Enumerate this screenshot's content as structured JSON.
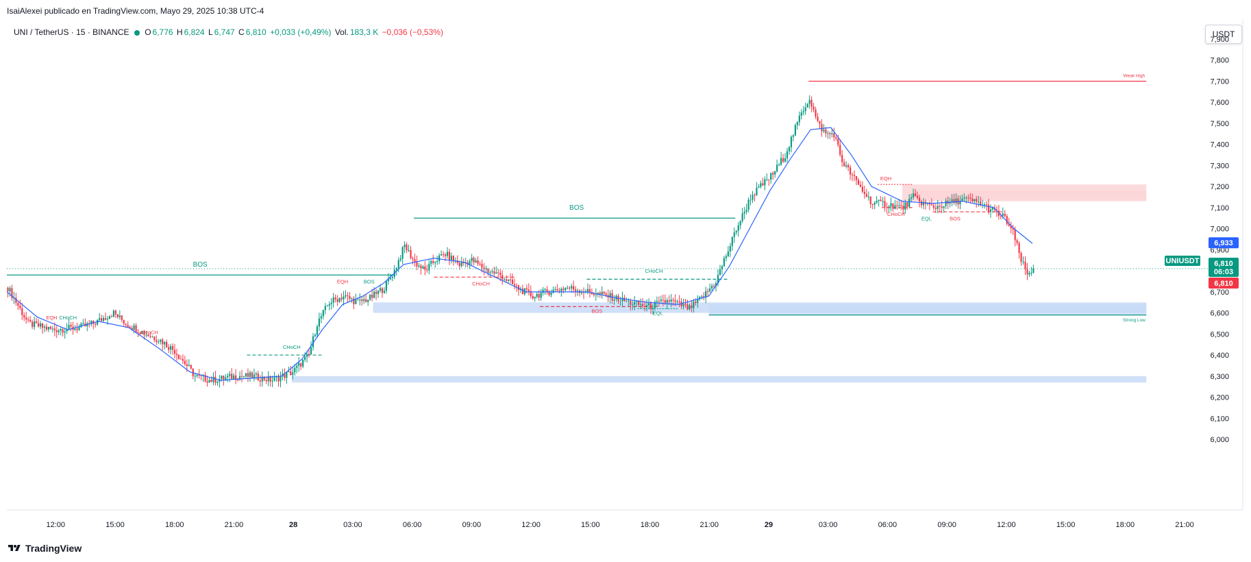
{
  "header": {
    "publisher": "IsaiAlexei publicado en TradingView.com, Mayo 29, 2025 10:38 UTC-4"
  },
  "legend": {
    "symbol": "UNI / TetherUS · 15 · BINANCE",
    "o_label": "O",
    "o": "6,776",
    "h_label": "H",
    "h": "6,824",
    "l_label": "L",
    "l": "6,747",
    "c_label": "C",
    "c": "6,810",
    "change": "+0,033 (+0,49%)",
    "vol_label": "Vol.",
    "vol": "183,3 K",
    "vol_change": "−0,036 (−0,53%)"
  },
  "currency_button": "USDT",
  "brand": "TradingView",
  "colors": {
    "up": "#089981",
    "down": "#f23645",
    "ema": "#2962ff",
    "demand_zone": "#c8daf7",
    "supply_zone": "#fbd5d8",
    "symbol_label": "#089981",
    "ema_label": "#2962ff"
  },
  "chart_data": {
    "type": "candlestick",
    "ylim": [
      6.0,
      7.9
    ],
    "y_ticks": [
      "7,900",
      "7,800",
      "7,700",
      "7,600",
      "7,500",
      "7,400",
      "7,300",
      "7,200",
      "7,100",
      "7,000",
      "6,900",
      "6,800",
      "6,700",
      "6,600",
      "6,500",
      "6,400",
      "6,300",
      "6,200",
      "6,100",
      "6,000"
    ],
    "x_ticks": [
      "12:00",
      "15:00",
      "18:00",
      "21:00",
      "28",
      "03:00",
      "06:00",
      "09:00",
      "12:00",
      "15:00",
      "18:00",
      "21:00",
      "29",
      "03:00",
      "06:00",
      "09:00",
      "12:00",
      "15:00",
      "18:00",
      "21:00"
    ],
    "price_labels": {
      "symbol_name": "UNIUSDT",
      "ema_value": "6,933",
      "last_price": "6,810",
      "countdown": "06:03",
      "last_price_axis": "6,810"
    },
    "close_path": [
      [
        0,
        6.72
      ],
      [
        10,
        6.55
      ],
      [
        22,
        6.52
      ],
      [
        35,
        6.53
      ],
      [
        42,
        6.55
      ],
      [
        48,
        6.58
      ],
      [
        52,
        6.6
      ],
      [
        58,
        6.55
      ],
      [
        68,
        6.5
      ],
      [
        75,
        6.47
      ],
      [
        82,
        6.42
      ],
      [
        88,
        6.35
      ],
      [
        92,
        6.3
      ],
      [
        100,
        6.28
      ],
      [
        112,
        6.3
      ],
      [
        120,
        6.3
      ],
      [
        130,
        6.28
      ],
      [
        140,
        6.32
      ],
      [
        148,
        6.4
      ],
      [
        152,
        6.55
      ],
      [
        158,
        6.65
      ],
      [
        165,
        6.68
      ],
      [
        172,
        6.65
      ],
      [
        178,
        6.67
      ],
      [
        185,
        6.72
      ],
      [
        190,
        6.8
      ],
      [
        195,
        6.92
      ],
      [
        200,
        6.84
      ],
      [
        205,
        6.8
      ],
      [
        210,
        6.85
      ],
      [
        215,
        6.88
      ],
      [
        222,
        6.83
      ],
      [
        228,
        6.85
      ],
      [
        236,
        6.8
      ],
      [
        242,
        6.78
      ],
      [
        250,
        6.72
      ],
      [
        258,
        6.68
      ],
      [
        265,
        6.7
      ],
      [
        275,
        6.72
      ],
      [
        285,
        6.7
      ],
      [
        295,
        6.68
      ],
      [
        305,
        6.65
      ],
      [
        315,
        6.63
      ],
      [
        325,
        6.66
      ],
      [
        335,
        6.62
      ],
      [
        342,
        6.68
      ],
      [
        348,
        6.75
      ],
      [
        352,
        6.85
      ],
      [
        355,
        6.92
      ],
      [
        358,
        7.0
      ],
      [
        362,
        7.08
      ],
      [
        365,
        7.15
      ],
      [
        370,
        7.2
      ],
      [
        376,
        7.26
      ],
      [
        382,
        7.35
      ],
      [
        386,
        7.45
      ],
      [
        390,
        7.55
      ],
      [
        394,
        7.62
      ],
      [
        398,
        7.5
      ],
      [
        402,
        7.45
      ],
      [
        406,
        7.45
      ],
      [
        410,
        7.32
      ],
      [
        415,
        7.25
      ],
      [
        420,
        7.18
      ],
      [
        425,
        7.12
      ],
      [
        430,
        7.12
      ],
      [
        440,
        7.1
      ],
      [
        445,
        7.15
      ],
      [
        450,
        7.12
      ],
      [
        455,
        7.1
      ],
      [
        462,
        7.12
      ],
      [
        470,
        7.14
      ],
      [
        478,
        7.12
      ],
      [
        485,
        7.08
      ],
      [
        490,
        7.05
      ],
      [
        494,
        6.98
      ],
      [
        498,
        6.85
      ],
      [
        501,
        6.78
      ],
      [
        504,
        6.81
      ]
    ],
    "ema_path": [
      [
        0,
        6.7
      ],
      [
        15,
        6.58
      ],
      [
        30,
        6.52
      ],
      [
        45,
        6.56
      ],
      [
        60,
        6.53
      ],
      [
        75,
        6.43
      ],
      [
        90,
        6.32
      ],
      [
        105,
        6.28
      ],
      [
        120,
        6.29
      ],
      [
        135,
        6.3
      ],
      [
        145,
        6.38
      ],
      [
        155,
        6.52
      ],
      [
        165,
        6.64
      ],
      [
        175,
        6.68
      ],
      [
        185,
        6.74
      ],
      [
        195,
        6.83
      ],
      [
        210,
        6.86
      ],
      [
        225,
        6.84
      ],
      [
        240,
        6.77
      ],
      [
        255,
        6.7
      ],
      [
        270,
        6.7
      ],
      [
        285,
        6.7
      ],
      [
        300,
        6.67
      ],
      [
        315,
        6.65
      ],
      [
        330,
        6.64
      ],
      [
        345,
        6.68
      ],
      [
        355,
        6.82
      ],
      [
        365,
        7.0
      ],
      [
        375,
        7.18
      ],
      [
        385,
        7.33
      ],
      [
        395,
        7.47
      ],
      [
        405,
        7.48
      ],
      [
        415,
        7.35
      ],
      [
        425,
        7.2
      ],
      [
        440,
        7.13
      ],
      [
        455,
        7.12
      ],
      [
        470,
        7.13
      ],
      [
        485,
        7.1
      ],
      [
        495,
        7.0
      ],
      [
        504,
        6.93
      ]
    ],
    "structure_lines": [
      {
        "label": "BOS",
        "x1": 0,
        "x2": 190,
        "y": 6.78,
        "style": "solid",
        "color": "#089981"
      },
      {
        "label": "BOS",
        "x1": 200,
        "x2": 358,
        "y": 7.05,
        "style": "solid",
        "color": "#089981"
      },
      {
        "label": "CHoCH",
        "x1": 285,
        "x2": 355,
        "y": 6.76,
        "style": "dashed",
        "color": "#089981"
      },
      {
        "label": "Weak High",
        "x1": 394,
        "x2": 560,
        "y": 7.7,
        "style": "solid",
        "color": "#f23645"
      },
      {
        "label": "Strong Low",
        "x1": 345,
        "x2": 560,
        "y": 6.59,
        "style": "solid",
        "color": "#089981"
      },
      {
        "label": "CHoCH",
        "x1": 118,
        "x2": 155,
        "y": 6.4,
        "style": "dashed",
        "color": "#089981"
      },
      {
        "label": "CHoCH",
        "x1": 210,
        "x2": 250,
        "y": 6.77,
        "style": "dashed",
        "color": "#f23645"
      },
      {
        "label": "BOS",
        "x1": 262,
        "x2": 320,
        "y": 6.63,
        "style": "dashed",
        "color": "#f23645"
      },
      {
        "label": "CHoCH",
        "x1": 430,
        "x2": 445,
        "y": 7.1,
        "style": "dashed",
        "color": "#f23645"
      },
      {
        "label": "BOS",
        "x1": 455,
        "x2": 490,
        "y": 7.08,
        "style": "dashed",
        "color": "#f23645"
      },
      {
        "label": "EQH",
        "x1": 428,
        "x2": 445,
        "y": 7.21,
        "style": "dotted",
        "color": "#f23645"
      },
      {
        "label": "EQL",
        "x1": 310,
        "x2": 330,
        "y": 6.62,
        "style": "dotted",
        "color": "#089981"
      }
    ],
    "zones": [
      {
        "type": "demand",
        "x1": 180,
        "x2": 560,
        "y1": 6.6,
        "y2": 6.65
      },
      {
        "type": "demand",
        "x1": 345,
        "x2": 560,
        "y1": 6.59,
        "y2": 6.64
      },
      {
        "type": "demand",
        "x1": 140,
        "x2": 560,
        "y1": 6.27,
        "y2": 6.3
      },
      {
        "type": "supply",
        "x1": 440,
        "x2": 560,
        "y1": 7.13,
        "y2": 7.21
      },
      {
        "type": "supply",
        "x1": 445,
        "x2": 560,
        "y1": 7.14,
        "y2": 7.18
      }
    ],
    "labels": [
      {
        "text": "BOS",
        "x": 95,
        "y": 6.82,
        "color": "#089981",
        "size": "md"
      },
      {
        "text": "BOS",
        "x": 280,
        "y": 7.09,
        "color": "#089981",
        "size": "md"
      },
      {
        "text": "CHoCH",
        "x": 318,
        "y": 6.79,
        "color": "#089981",
        "size": "sm"
      },
      {
        "text": "EQH",
        "x": 165,
        "y": 6.74,
        "color": "#f23645",
        "size": "sm"
      },
      {
        "text": "BOS",
        "x": 178,
        "y": 6.74,
        "color": "#089981",
        "size": "sm"
      },
      {
        "text": "CHoCH",
        "x": 233,
        "y": 6.73,
        "color": "#f23645",
        "size": "sm"
      },
      {
        "text": "BOS",
        "x": 290,
        "y": 6.6,
        "color": "#f23645",
        "size": "sm"
      },
      {
        "text": "EQL",
        "x": 320,
        "y": 6.59,
        "color": "#089981",
        "size": "sm"
      },
      {
        "text": "CHoCH",
        "x": 140,
        "y": 6.43,
        "color": "#089981",
        "size": "sm"
      },
      {
        "text": "EQH",
        "x": 22,
        "y": 6.57,
        "color": "#f23645",
        "size": "sm"
      },
      {
        "text": "CHoCH",
        "x": 30,
        "y": 6.57,
        "color": "#089981",
        "size": "sm"
      },
      {
        "text": "CHoCH",
        "x": 70,
        "y": 6.5,
        "color": "#f23645",
        "size": "sm"
      },
      {
        "text": "EQH",
        "x": 432,
        "y": 7.23,
        "color": "#f23645",
        "size": "sm"
      },
      {
        "text": "CHoCH",
        "x": 437,
        "y": 7.06,
        "color": "#f23645",
        "size": "sm"
      },
      {
        "text": "EQL",
        "x": 452,
        "y": 7.04,
        "color": "#089981",
        "size": "sm"
      },
      {
        "text": "BOS",
        "x": 466,
        "y": 7.04,
        "color": "#f23645",
        "size": "sm"
      },
      {
        "text": "Weak High",
        "x": 554,
        "y": 7.72,
        "color": "#f23645",
        "size": "xs"
      },
      {
        "text": "Strong Low",
        "x": 554,
        "y": 6.56,
        "color": "#089981",
        "size": "xs"
      }
    ]
  }
}
